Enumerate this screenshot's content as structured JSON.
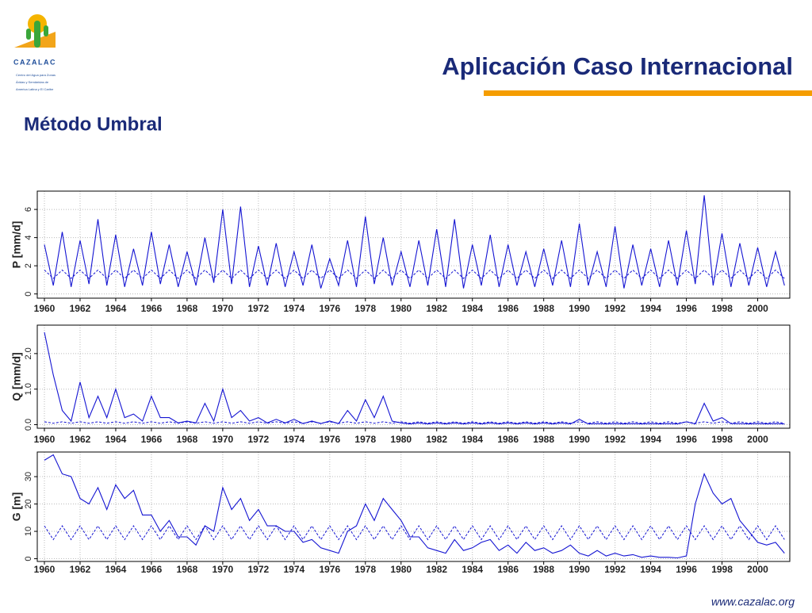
{
  "header": {
    "title": "Aplicación Caso Internacional",
    "subtitle": "Método Umbral",
    "logo_name": "CAZALAC",
    "logo_caption": [
      "Centro del Agua para Zonas",
      "Áridas y Semiáridas de",
      "America Latina y El Caribe"
    ],
    "footer": "www.cazalac.org"
  },
  "chart_data": [
    {
      "type": "line",
      "y_label": "P [mm/d]",
      "grid": true,
      "x": [
        1960,
        1960.5,
        1961,
        1961.5,
        1962,
        1962.5,
        1963,
        1963.5,
        1964,
        1964.5,
        1965,
        1965.5,
        1966,
        1966.5,
        1967,
        1967.5,
        1968,
        1968.5,
        1969,
        1969.5,
        1970,
        1970.5,
        1971,
        1971.5,
        1972,
        1972.5,
        1973,
        1973.5,
        1974,
        1974.5,
        1975,
        1975.5,
        1976,
        1976.5,
        1977,
        1977.5,
        1978,
        1978.5,
        1979,
        1979.5,
        1980,
        1980.5,
        1981,
        1981.5,
        1982,
        1982.5,
        1983,
        1983.5,
        1984,
        1984.5,
        1985,
        1985.5,
        1986,
        1986.5,
        1987,
        1987.5,
        1988,
        1988.5,
        1989,
        1989.5,
        1990,
        1990.5,
        1991,
        1991.5,
        1992,
        1992.5,
        1993,
        1993.5,
        1994,
        1994.5,
        1995,
        1995.5,
        1996,
        1996.5,
        1997,
        1997.5,
        1998,
        1998.5,
        1999,
        1999.5,
        2000,
        2000.5,
        2001,
        2001.5
      ],
      "series": [
        {
          "color": "#1414d2",
          "values": [
            3.5,
            0.6,
            4.4,
            0.5,
            3.8,
            0.7,
            5.3,
            0.6,
            4.2,
            0.5,
            3.2,
            0.6,
            4.4,
            0.7,
            3.5,
            0.5,
            3.0,
            0.6,
            4.0,
            0.8,
            6.0,
            0.7,
            6.2,
            0.5,
            3.4,
            0.6,
            3.6,
            0.5,
            3.0,
            0.6,
            3.5,
            0.4,
            2.5,
            0.6,
            3.8,
            0.5,
            5.5,
            0.7,
            4.0,
            0.6,
            3.0,
            0.5,
            3.8,
            0.6,
            4.6,
            0.5,
            5.3,
            0.4,
            3.5,
            0.6,
            4.2,
            0.5,
            3.5,
            0.6,
            3.0,
            0.5,
            3.2,
            0.6,
            3.8,
            0.5,
            5.0,
            0.6,
            3.0,
            0.5,
            4.8,
            0.4,
            3.5,
            0.6,
            3.2,
            0.5,
            3.8,
            0.6,
            4.5,
            0.7,
            7.0,
            0.6,
            4.3,
            0.5,
            3.6,
            0.6,
            3.3,
            0.5,
            3.0,
            0.6
          ]
        },
        {
          "color": "#1414d2",
          "dashed": true,
          "values": [
            1.7,
            1.1,
            1.7,
            1.1,
            1.7,
            1.1,
            1.7,
            1.1,
            1.7,
            1.1,
            1.7,
            1.1,
            1.7,
            1.1,
            1.7,
            1.1,
            1.7,
            1.1,
            1.7,
            1.1,
            1.7,
            1.1,
            1.7,
            1.1,
            1.7,
            1.1,
            1.7,
            1.1,
            1.7,
            1.1,
            1.7,
            1.1,
            1.7,
            1.1,
            1.7,
            1.1,
            1.7,
            1.1,
            1.7,
            1.1,
            1.7,
            1.1,
            1.7,
            1.1,
            1.7,
            1.1,
            1.7,
            1.1,
            1.7,
            1.1,
            1.7,
            1.1,
            1.7,
            1.1,
            1.7,
            1.1,
            1.7,
            1.1,
            1.7,
            1.1,
            1.7,
            1.1,
            1.7,
            1.1,
            1.7,
            1.1,
            1.7,
            1.1,
            1.7,
            1.1,
            1.7,
            1.1,
            1.7,
            1.1,
            1.7,
            1.1,
            1.7,
            1.1,
            1.7,
            1.1,
            1.7,
            1.1,
            1.7,
            1.1
          ]
        }
      ],
      "xlim": [
        1959.6,
        2001.8
      ],
      "xticks": [
        1960,
        1962,
        1964,
        1966,
        1968,
        1970,
        1972,
        1974,
        1976,
        1978,
        1980,
        1982,
        1984,
        1986,
        1988,
        1990,
        1992,
        1994,
        1996,
        1998,
        2000
      ],
      "ylim": [
        -0.3,
        7.3
      ],
      "yticks": [
        0,
        2,
        4,
        6
      ]
    },
    {
      "type": "line",
      "y_label": "Q [mm/d]",
      "grid": true,
      "x": [
        1960,
        1960.5,
        1961,
        1961.5,
        1962,
        1962.5,
        1963,
        1963.5,
        1964,
        1964.5,
        1965,
        1965.5,
        1966,
        1966.5,
        1967,
        1967.5,
        1968,
        1968.5,
        1969,
        1969.5,
        1970,
        1970.5,
        1971,
        1971.5,
        1972,
        1972.5,
        1973,
        1973.5,
        1974,
        1974.5,
        1975,
        1975.5,
        1976,
        1976.5,
        1977,
        1977.5,
        1978,
        1978.5,
        1979,
        1979.5,
        1980,
        1980.5,
        1981,
        1981.5,
        1982,
        1982.5,
        1983,
        1983.5,
        1984,
        1984.5,
        1985,
        1985.5,
        1986,
        1986.5,
        1987,
        1987.5,
        1988,
        1988.5,
        1989,
        1989.5,
        1990,
        1990.5,
        1991,
        1991.5,
        1992,
        1992.5,
        1993,
        1993.5,
        1994,
        1994.5,
        1995,
        1995.5,
        1996,
        1996.5,
        1997,
        1997.5,
        1998,
        1998.5,
        1999,
        1999.5,
        2000,
        2000.5,
        2001,
        2001.5
      ],
      "series": [
        {
          "color": "#1414d2",
          "values": [
            2.6,
            1.4,
            0.4,
            0.1,
            1.2,
            0.2,
            0.8,
            0.2,
            1.0,
            0.2,
            0.3,
            0.1,
            0.8,
            0.2,
            0.2,
            0.05,
            0.1,
            0.05,
            0.6,
            0.1,
            1.0,
            0.2,
            0.4,
            0.1,
            0.2,
            0.05,
            0.15,
            0.05,
            0.15,
            0.03,
            0.1,
            0.03,
            0.1,
            0.03,
            0.4,
            0.1,
            0.7,
            0.2,
            0.8,
            0.1,
            0.05,
            0.02,
            0.05,
            0.02,
            0.05,
            0.02,
            0.05,
            0.02,
            0.05,
            0.02,
            0.05,
            0.02,
            0.05,
            0.02,
            0.05,
            0.02,
            0.05,
            0.02,
            0.05,
            0.02,
            0.15,
            0.02,
            0.03,
            0.02,
            0.03,
            0.02,
            0.03,
            0.02,
            0.03,
            0.02,
            0.03,
            0.02,
            0.08,
            0.02,
            0.6,
            0.1,
            0.2,
            0.03,
            0.03,
            0.02,
            0.03,
            0.02,
            0.03,
            0.02
          ]
        },
        {
          "color": "#1414d2",
          "dashed": true,
          "values": [
            0.08,
            0.04,
            0.08,
            0.04,
            0.08,
            0.04,
            0.08,
            0.04,
            0.08,
            0.04,
            0.08,
            0.04,
            0.08,
            0.04,
            0.08,
            0.04,
            0.08,
            0.04,
            0.08,
            0.04,
            0.08,
            0.04,
            0.08,
            0.04,
            0.08,
            0.04,
            0.08,
            0.04,
            0.08,
            0.04,
            0.08,
            0.04,
            0.08,
            0.04,
            0.08,
            0.04,
            0.08,
            0.04,
            0.08,
            0.04,
            0.08,
            0.04,
            0.08,
            0.04,
            0.08,
            0.04,
            0.08,
            0.04,
            0.08,
            0.04,
            0.08,
            0.04,
            0.08,
            0.04,
            0.08,
            0.04,
            0.08,
            0.04,
            0.08,
            0.04,
            0.08,
            0.04,
            0.08,
            0.04,
            0.08,
            0.04,
            0.08,
            0.04,
            0.08,
            0.04,
            0.08,
            0.04,
            0.08,
            0.04,
            0.08,
            0.04,
            0.08,
            0.04,
            0.08,
            0.04,
            0.08,
            0.04,
            0.08,
            0.04
          ]
        }
      ],
      "xlim": [
        1959.6,
        2001.8
      ],
      "xticks": [
        1960,
        1962,
        1964,
        1966,
        1968,
        1970,
        1972,
        1974,
        1976,
        1978,
        1980,
        1982,
        1984,
        1986,
        1988,
        1990,
        1992,
        1994,
        1996,
        1998,
        2000
      ],
      "ylim": [
        -0.1,
        2.8
      ],
      "yticks": [
        {
          "value": 0,
          "label": "0.0"
        },
        {
          "value": 1,
          "label": "1.0"
        },
        {
          "value": 2,
          "label": "2.0"
        }
      ]
    },
    {
      "type": "line",
      "y_label": "G [m]",
      "grid": true,
      "x": [
        1960,
        1960.5,
        1961,
        1961.5,
        1962,
        1962.5,
        1963,
        1963.5,
        1964,
        1964.5,
        1965,
        1965.5,
        1966,
        1966.5,
        1967,
        1967.5,
        1968,
        1968.5,
        1969,
        1969.5,
        1970,
        1970.5,
        1971,
        1971.5,
        1972,
        1972.5,
        1973,
        1973.5,
        1974,
        1974.5,
        1975,
        1975.5,
        1976,
        1976.5,
        1977,
        1977.5,
        1978,
        1978.5,
        1979,
        1979.5,
        1980,
        1980.5,
        1981,
        1981.5,
        1982,
        1982.5,
        1983,
        1983.5,
        1984,
        1984.5,
        1985,
        1985.5,
        1986,
        1986.5,
        1987,
        1987.5,
        1988,
        1988.5,
        1989,
        1989.5,
        1990,
        1990.5,
        1991,
        1991.5,
        1992,
        1992.5,
        1993,
        1993.5,
        1994,
        1994.5,
        1995,
        1995.5,
        1996,
        1996.5,
        1997,
        1997.5,
        1998,
        1998.5,
        1999,
        1999.5,
        2000,
        2000.5,
        2001,
        2001.5
      ],
      "series": [
        {
          "color": "#1414d2",
          "values": [
            36,
            38,
            31,
            30,
            22,
            20,
            26,
            18,
            27,
            22,
            25,
            16,
            16,
            10,
            14,
            8,
            8,
            5,
            12,
            10,
            26,
            18,
            22,
            14,
            18,
            12,
            12,
            10,
            10,
            6,
            7,
            4,
            3,
            2,
            10,
            12,
            20,
            14,
            22,
            18,
            14,
            8,
            8,
            4,
            3,
            2,
            7,
            3,
            4,
            6,
            7,
            3,
            5,
            2,
            6,
            3,
            4,
            2,
            3,
            5,
            2,
            1,
            3,
            1,
            2,
            1,
            1.5,
            0.5,
            1,
            0.5,
            0.5,
            0.3,
            1,
            20,
            31,
            24,
            20,
            22,
            14,
            10,
            6,
            5,
            6,
            2
          ]
        },
        {
          "color": "#1414d2",
          "dashed": true,
          "values": [
            12,
            7,
            12,
            7,
            12,
            7,
            12,
            7,
            12,
            7,
            12,
            7,
            12,
            7,
            12,
            7,
            12,
            7,
            12,
            7,
            12,
            7,
            12,
            7,
            12,
            7,
            12,
            7,
            12,
            7,
            12,
            7,
            12,
            7,
            12,
            7,
            12,
            7,
            12,
            7,
            12,
            7,
            12,
            7,
            12,
            7,
            12,
            7,
            12,
            7,
            12,
            7,
            12,
            7,
            12,
            7,
            12,
            7,
            12,
            7,
            12,
            7,
            12,
            7,
            12,
            7,
            12,
            7,
            12,
            7,
            12,
            7,
            12,
            7,
            12,
            7,
            12,
            7,
            12,
            7,
            12,
            7,
            12,
            7
          ]
        }
      ],
      "xlim": [
        1959.6,
        2001.8
      ],
      "xticks": [
        1960,
        1962,
        1964,
        1966,
        1968,
        1970,
        1972,
        1974,
        1976,
        1978,
        1980,
        1982,
        1984,
        1986,
        1988,
        1990,
        1992,
        1994,
        1996,
        1998,
        2000
      ],
      "ylim": [
        -1,
        39
      ],
      "yticks": [
        0,
        10,
        20,
        30
      ]
    }
  ]
}
